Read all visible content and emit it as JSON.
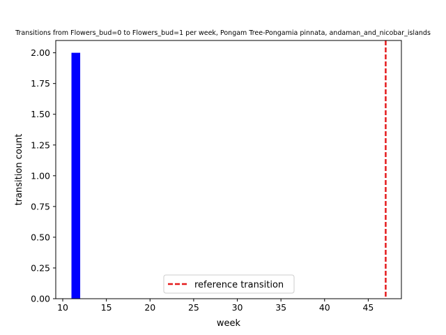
{
  "chart_data": {
    "type": "bar",
    "title": "Transitions from Flowers_bud=0 to Flowers_bud=1 per week, Pongam Tree-Pongamia pinnata, andaman_and_nicobar_islands",
    "xlabel": "week",
    "ylabel": "transition count",
    "xlim": [
      9.2,
      48.8
    ],
    "ylim": [
      0,
      2.1
    ],
    "xticks": [
      10,
      15,
      20,
      25,
      30,
      35,
      40,
      45
    ],
    "yticks": [
      0.0,
      0.25,
      0.5,
      0.75,
      1.0,
      1.25,
      1.5,
      1.75,
      2.0
    ],
    "ytick_labels": [
      "0.00",
      "0.25",
      "0.50",
      "0.75",
      "1.00",
      "1.25",
      "1.50",
      "1.75",
      "2.00"
    ],
    "bars": [
      {
        "x_start": 11,
        "x_end": 12,
        "value": 2
      }
    ],
    "bar_color": "#0000ff",
    "reference_line": {
      "x": 47,
      "label": "reference transition",
      "color": "#e41a1c",
      "style": "dashed"
    },
    "legend_position": "lower center",
    "grid": false
  }
}
